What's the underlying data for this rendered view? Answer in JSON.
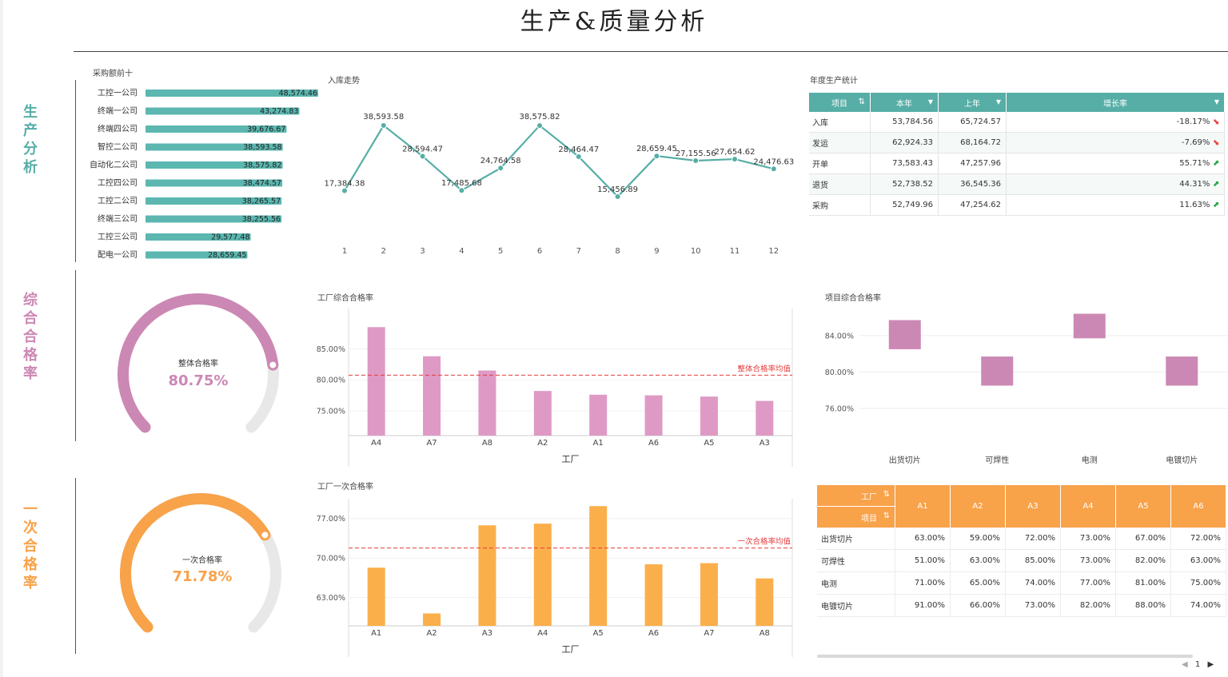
{
  "title": "生产&质量分析",
  "sections": {
    "production": {
      "label": "生产分析",
      "color": "#56aea6"
    },
    "overall": {
      "label": "综合合格率",
      "color": "#cc88b4"
    },
    "first": {
      "label": "一次合格率",
      "color": "#f8a24a"
    }
  },
  "purchase_top10": {
    "title": "采购额前十",
    "chart_data": {
      "type": "bar",
      "orientation": "horizontal",
      "categories": [
        "工控一公司",
        "终端一公司",
        "终端四公司",
        "智控二公司",
        "自动化二公司",
        "工控四公司",
        "工控二公司",
        "终端三公司",
        "工控三公司",
        "配电一公司"
      ],
      "values": [
        48574.46,
        43274.83,
        39676.67,
        38593.58,
        38575.82,
        38474.57,
        38265.57,
        38255.56,
        29577.48,
        28659.45
      ],
      "labels": [
        "48,574.46",
        "43,274.83",
        "39,676.67",
        "38,593.58",
        "38,575.82",
        "38,474.57",
        "38,265.57",
        "38,255.56",
        "29,577.48",
        "28,659.45"
      ],
      "color": "#5bb7b0"
    }
  },
  "inbound_trend": {
    "title": "入库走势",
    "chart_data": {
      "type": "line",
      "x": [
        "1",
        "2",
        "3",
        "4",
        "5",
        "6",
        "7",
        "8",
        "9",
        "10",
        "11",
        "12"
      ],
      "values": [
        17384.38,
        38593.58,
        28594.47,
        17485.68,
        24764.58,
        38575.82,
        28464.47,
        15456.89,
        28659.45,
        27155.56,
        27654.62,
        24476.63
      ],
      "labels": [
        "17,384.38",
        "38,593.58",
        "28,594.47",
        "17,485.68",
        "24,764.58",
        "38,575.82",
        "28,464.47",
        "15,456.89",
        "28,659.45",
        "27,155.56",
        "27,654.62",
        "24,476.63"
      ],
      "color": "#56aea6"
    }
  },
  "annual_table": {
    "title": "年度生产统计",
    "headers": [
      "项目",
      "本年",
      "上年",
      "增长率"
    ],
    "sort_icon": "⇅",
    "dropdown_icon": "▼",
    "rows": [
      {
        "name": "入库",
        "this_year": "53,784.56",
        "last_year": "65,724.57",
        "growth": "-18.17%",
        "trend": "down"
      },
      {
        "name": "发运",
        "this_year": "62,924.33",
        "last_year": "68,164.72",
        "growth": "-7.69%",
        "trend": "down"
      },
      {
        "name": "开单",
        "this_year": "73,583.43",
        "last_year": "47,257.96",
        "growth": "55.71%",
        "trend": "up"
      },
      {
        "name": "退货",
        "this_year": "52,738.52",
        "last_year": "36,545.36",
        "growth": "44.31%",
        "trend": "up"
      },
      {
        "name": "采购",
        "this_year": "52,749.96",
        "last_year": "47,254.62",
        "growth": "11.63%",
        "trend": "up"
      }
    ]
  },
  "overall_gauge": {
    "label": "整体合格率",
    "value_text": "80.75%",
    "value": 0.8075,
    "color": "#cc88b4"
  },
  "factory_overall": {
    "title": "工厂综合合格率",
    "chart_data": {
      "type": "bar",
      "categories": [
        "A4",
        "A7",
        "A8",
        "A2",
        "A1",
        "A6",
        "A5",
        "A3"
      ],
      "values": [
        88.5,
        83.8,
        81.5,
        78.2,
        77.6,
        77.5,
        77.3,
        76.6
      ],
      "yticks": [
        "75.00%",
        "80.00%",
        "85.00%"
      ],
      "ylim": [
        71,
        91.5
      ],
      "xlabel": "工厂",
      "ref_value": 80.75,
      "ref_label": "整体合格率均值",
      "color": "#de9ac5"
    }
  },
  "project_overall": {
    "title": "项目综合合格率",
    "chart_data": {
      "type": "bar",
      "subtype": "floating",
      "categories": [
        "出货切片",
        "可焊性",
        "电测",
        "电镀切片"
      ],
      "ranges": [
        [
          82.5,
          85.7
        ],
        [
          78.5,
          81.7
        ],
        [
          83.7,
          86.4
        ],
        [
          78.5,
          81.7
        ]
      ],
      "yticks": [
        "76.00%",
        "80.00%",
        "84.00%"
      ],
      "ylim": [
        74.5,
        87.5
      ],
      "color": "#cc88b4"
    }
  },
  "first_gauge": {
    "label": "一次合格率",
    "value_text": "71.78%",
    "value": 0.7178,
    "color": "#f8a24a"
  },
  "factory_first": {
    "title": "工厂一次合格率",
    "chart_data": {
      "type": "bar",
      "categories": [
        "A1",
        "A2",
        "A3",
        "A4",
        "A5",
        "A6",
        "A7",
        "A8"
      ],
      "values": [
        68.3,
        60.2,
        75.8,
        76.1,
        79.2,
        68.9,
        69.1,
        66.4
      ],
      "yticks": [
        "63.00%",
        "70.00%",
        "77.00%"
      ],
      "ylim": [
        58,
        80.5
      ],
      "xlabel": "工厂",
      "ref_value": 71.78,
      "ref_label": "一次合格率均值",
      "color": "#fbaf4b"
    }
  },
  "pass_table": {
    "header_factory": "工厂",
    "header_item": "项目",
    "sort_icon": "⇅",
    "columns": [
      "A1",
      "A2",
      "A3",
      "A4",
      "A5",
      "A6"
    ],
    "rows": [
      {
        "name": "出货切片",
        "cells": [
          "63.00%",
          "59.00%",
          "72.00%",
          "73.00%",
          "67.00%",
          "72.00%"
        ]
      },
      {
        "name": "可焊性",
        "cells": [
          "51.00%",
          "63.00%",
          "85.00%",
          "73.00%",
          "82.00%",
          "63.00%"
        ]
      },
      {
        "name": "电测",
        "cells": [
          "71.00%",
          "65.00%",
          "74.00%",
          "77.00%",
          "81.00%",
          "75.00%"
        ]
      },
      {
        "name": "电镀切片",
        "cells": [
          "91.00%",
          "66.00%",
          "73.00%",
          "82.00%",
          "88.00%",
          "74.00%"
        ]
      }
    ]
  },
  "pager": {
    "prev": "◀",
    "page": "1",
    "next": "▶"
  }
}
